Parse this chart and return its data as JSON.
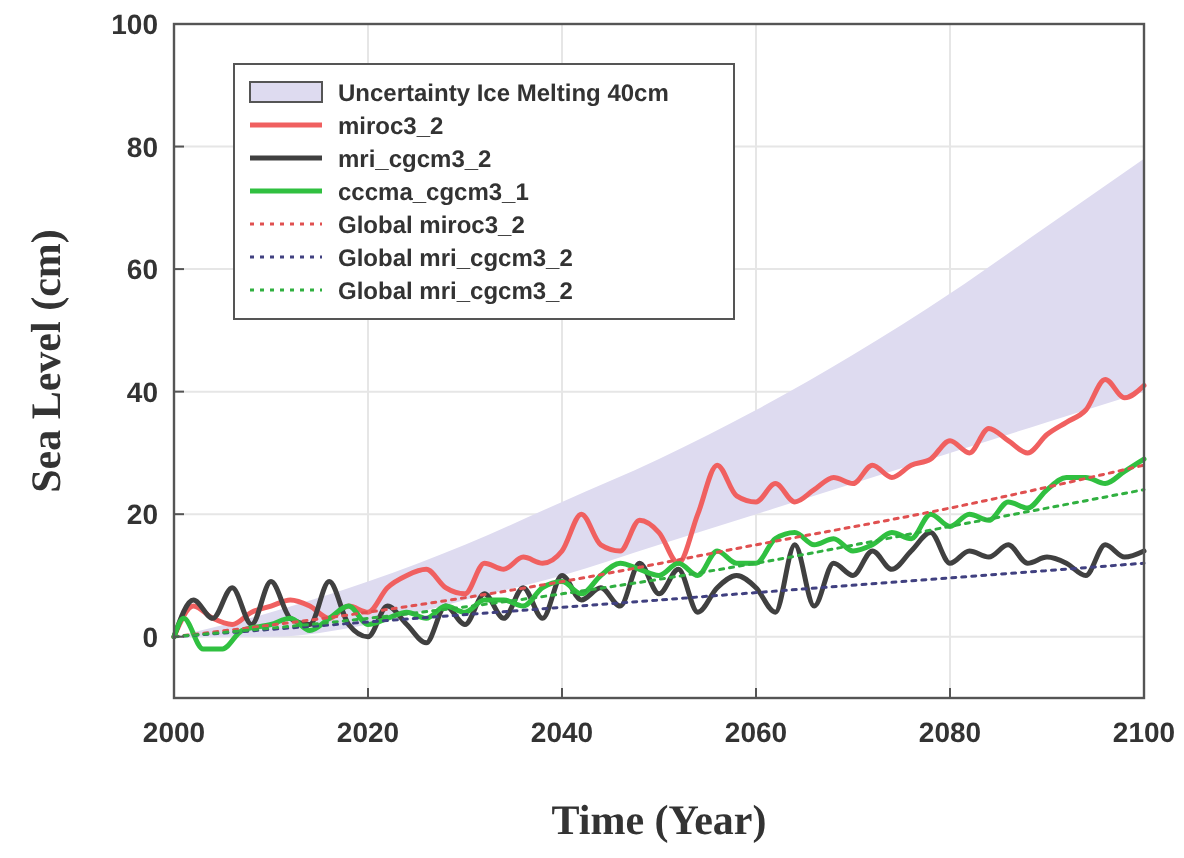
{
  "chart_data": {
    "type": "line",
    "xlabel": "Time (Year)",
    "ylabel": "Sea Level (cm)",
    "xlim": [
      2000,
      2100
    ],
    "ylim": [
      -10,
      100
    ],
    "xticks": [
      2000,
      2020,
      2040,
      2060,
      2080,
      2100
    ],
    "yticks": [
      0,
      20,
      40,
      60,
      80,
      100
    ],
    "grid": true,
    "legend": "top left",
    "series": [
      {
        "type": "area",
        "name": "Uncertainty Ice Melting 40cm",
        "color": "#dedbf0",
        "x": [
          2000,
          2010,
          2020,
          2030,
          2040,
          2050,
          2060,
          2070,
          2080,
          2090,
          2100
        ],
        "values": [
          null,
          null,
          null,
          null,
          null,
          null,
          null,
          null,
          null,
          null,
          null
        ],
        "upper": [
          0,
          4,
          9,
          15,
          22,
          29,
          37,
          46,
          56,
          67,
          78
        ],
        "lower": [
          0,
          0,
          2,
          6,
          10,
          15,
          20,
          25,
          30,
          35,
          40
        ]
      },
      {
        "name": "miroc3_2",
        "color": "#f06060",
        "x": [
          2000,
          2002,
          2004,
          2006,
          2008,
          2010,
          2012,
          2014,
          2016,
          2018,
          2020,
          2022,
          2024,
          2026,
          2028,
          2030,
          2032,
          2034,
          2036,
          2038,
          2040,
          2042,
          2044,
          2046,
          2048,
          2050,
          2052,
          2054,
          2056,
          2058,
          2060,
          2062,
          2064,
          2066,
          2068,
          2070,
          2072,
          2074,
          2076,
          2078,
          2080,
          2082,
          2084,
          2086,
          2088,
          2090,
          2092,
          2094,
          2096,
          2098,
          2100
        ],
        "values": [
          0,
          5,
          3,
          2,
          4,
          5,
          6,
          5,
          3,
          5,
          4,
          8,
          10,
          11,
          8,
          7,
          12,
          11,
          13,
          12,
          14,
          20,
          15,
          14,
          19,
          17,
          12,
          20,
          28,
          23,
          22,
          25,
          22,
          24,
          26,
          25,
          28,
          26,
          28,
          29,
          32,
          30,
          34,
          32,
          30,
          33,
          35,
          37,
          42,
          39,
          41
        ]
      },
      {
        "name": "mri_cgcm3_2",
        "color": "#404040",
        "x": [
          2000,
          2002,
          2004,
          2006,
          2008,
          2010,
          2012,
          2014,
          2016,
          2018,
          2020,
          2022,
          2024,
          2026,
          2028,
          2030,
          2032,
          2034,
          2036,
          2038,
          2040,
          2042,
          2044,
          2046,
          2048,
          2050,
          2052,
          2054,
          2056,
          2058,
          2060,
          2062,
          2064,
          2066,
          2068,
          2070,
          2072,
          2074,
          2076,
          2078,
          2080,
          2082,
          2084,
          2086,
          2088,
          2090,
          2092,
          2094,
          2096,
          2098,
          2100
        ],
        "values": [
          0,
          6,
          3,
          8,
          2,
          9,
          3,
          2,
          9,
          2,
          0,
          5,
          2,
          -1,
          5,
          2,
          7,
          3,
          8,
          3,
          10,
          6,
          8,
          5,
          12,
          7,
          11,
          4,
          8,
          10,
          8,
          4,
          15,
          5,
          12,
          10,
          14,
          11,
          14,
          17,
          12,
          14,
          13,
          15,
          12,
          13,
          12,
          10,
          15,
          13,
          14
        ]
      },
      {
        "name": "cccma_cgcm3_1",
        "color": "#30c040",
        "x": [
          2000,
          2001,
          2003,
          2005,
          2007,
          2010,
          2012,
          2014,
          2016,
          2018,
          2020,
          2022,
          2024,
          2026,
          2028,
          2030,
          2032,
          2034,
          2036,
          2038,
          2040,
          2042,
          2044,
          2046,
          2048,
          2050,
          2052,
          2054,
          2056,
          2058,
          2060,
          2062,
          2064,
          2066,
          2068,
          2070,
          2072,
          2074,
          2076,
          2078,
          2080,
          2082,
          2084,
          2086,
          2088,
          2090,
          2092,
          2094,
          2096,
          2098,
          2100
        ],
        "values": [
          0,
          3,
          -2,
          -2,
          1,
          2,
          3,
          1,
          3,
          5,
          2,
          3,
          4,
          3,
          5,
          4,
          6,
          6,
          5,
          8,
          9,
          7,
          10,
          12,
          11,
          10,
          12,
          10,
          14,
          12,
          12,
          16,
          17,
          15,
          16,
          14,
          15,
          17,
          16,
          20,
          18,
          20,
          19,
          22,
          21,
          24,
          26,
          26,
          25,
          27,
          29
        ]
      },
      {
        "name": "Global miroc3_2",
        "color": "#e05050",
        "line_style": "dotted",
        "x": [
          2000,
          2020,
          2040,
          2060,
          2080,
          2100
        ],
        "values": [
          0,
          4,
          9,
          15,
          21,
          28
        ]
      },
      {
        "name": "Global mri_cgcm3_2",
        "color": "#404080",
        "line_style": "dotted",
        "x": [
          2000,
          2050,
          2100
        ],
        "values": [
          0,
          6,
          12
        ]
      },
      {
        "name": "Global mri_cgcm3_2",
        "color": "#30b040",
        "line_style": "dotted",
        "x": [
          2000,
          2020,
          2040,
          2060,
          2080,
          2100
        ],
        "values": [
          0,
          3,
          7,
          12,
          18,
          24
        ]
      }
    ]
  }
}
